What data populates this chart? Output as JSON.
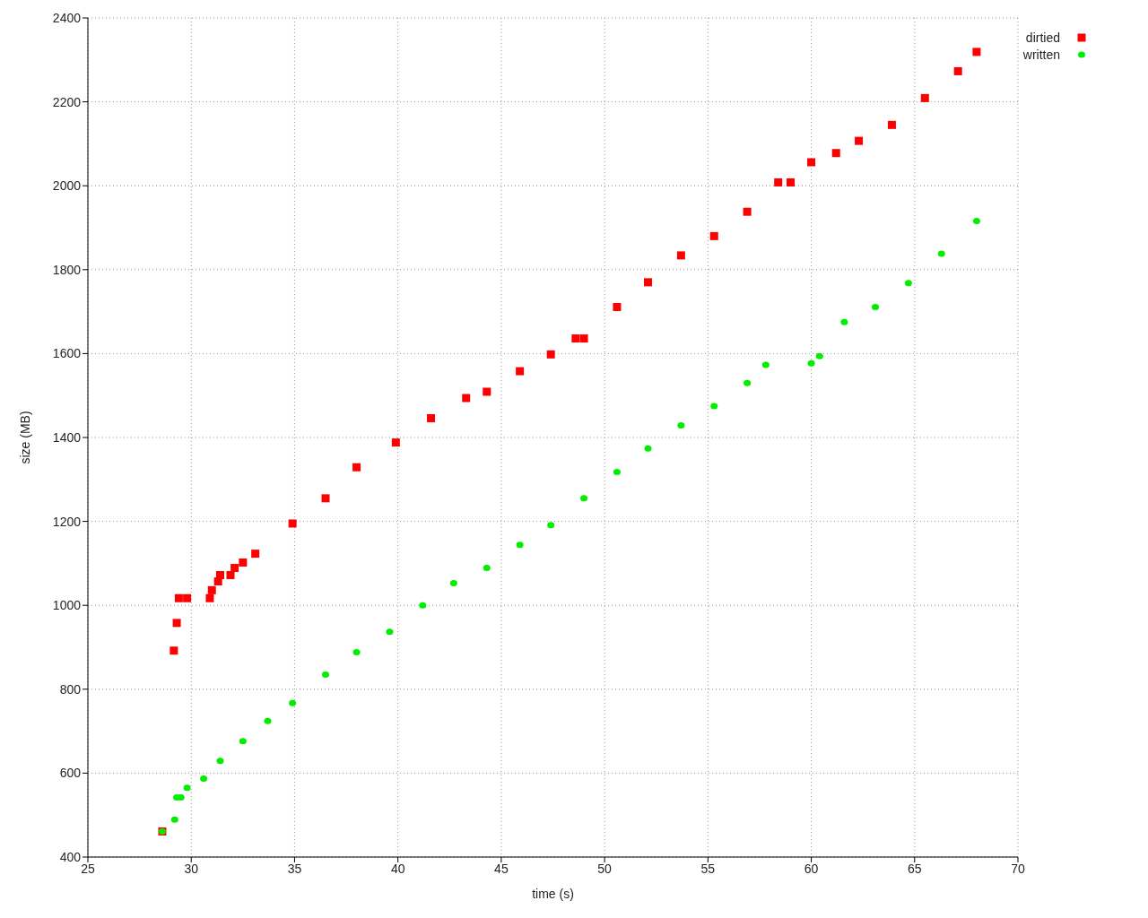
{
  "chart_data": {
    "type": "scatter",
    "xlabel": "time (s)",
    "ylabel": "size (MB)",
    "xlim": [
      25,
      70
    ],
    "xticks": [
      25,
      30,
      35,
      40,
      45,
      50,
      55,
      60,
      65,
      70
    ],
    "ylim": [
      400,
      2400
    ],
    "yticks": [
      400,
      600,
      800,
      1000,
      1200,
      1400,
      1600,
      1800,
      2000,
      2200,
      2400
    ],
    "grid": true,
    "legend": "top right",
    "series": [
      {
        "name": "dirtied",
        "color": "#ff0000",
        "marker": "square",
        "x": [
          28.6,
          29.16,
          29.3,
          29.4,
          29.8,
          30.9,
          31.0,
          31.3,
          31.4,
          31.9,
          32.1,
          32.5,
          33.1,
          34.9,
          36.5,
          38.0,
          39.9,
          41.6,
          43.3,
          44.3,
          45.9,
          47.4,
          48.6,
          49.0,
          50.6,
          52.1,
          53.7,
          55.3,
          56.9,
          58.4,
          59.0,
          60.0,
          61.2,
          62.3,
          63.9,
          65.5,
          67.1,
          68.0
        ],
        "values": [
          461,
          892,
          958,
          1017,
          1017,
          1017,
          1036,
          1057,
          1072,
          1072,
          1089,
          1102,
          1123,
          1195,
          1255,
          1329,
          1388,
          1446,
          1494,
          1509,
          1558,
          1598,
          1636,
          1636,
          1711,
          1770,
          1834,
          1880,
          1938,
          2008,
          2008,
          2056,
          2078,
          2107,
          2145,
          2209,
          2273,
          2319
        ]
      },
      {
        "name": "written",
        "color": "#00ee00",
        "marker": "circle",
        "x": [
          28.6,
          29.2,
          29.3,
          29.5,
          29.8,
          30.6,
          31.4,
          32.5,
          33.7,
          34.9,
          36.5,
          38.0,
          39.6,
          41.2,
          42.7,
          44.3,
          45.9,
          47.4,
          49.0,
          50.6,
          52.1,
          53.7,
          55.3,
          56.9,
          57.8,
          60.0,
          60.4,
          61.6,
          63.1,
          64.7,
          66.3,
          68.0
        ],
        "values": [
          461,
          489,
          542,
          542,
          565,
          587,
          629,
          676,
          724,
          767,
          835,
          888,
          937,
          1000,
          1053,
          1089,
          1144,
          1191,
          1255,
          1318,
          1374,
          1429,
          1475,
          1530,
          1573,
          1577,
          1594,
          1675,
          1711,
          1768,
          1838,
          1916
        ]
      }
    ]
  }
}
